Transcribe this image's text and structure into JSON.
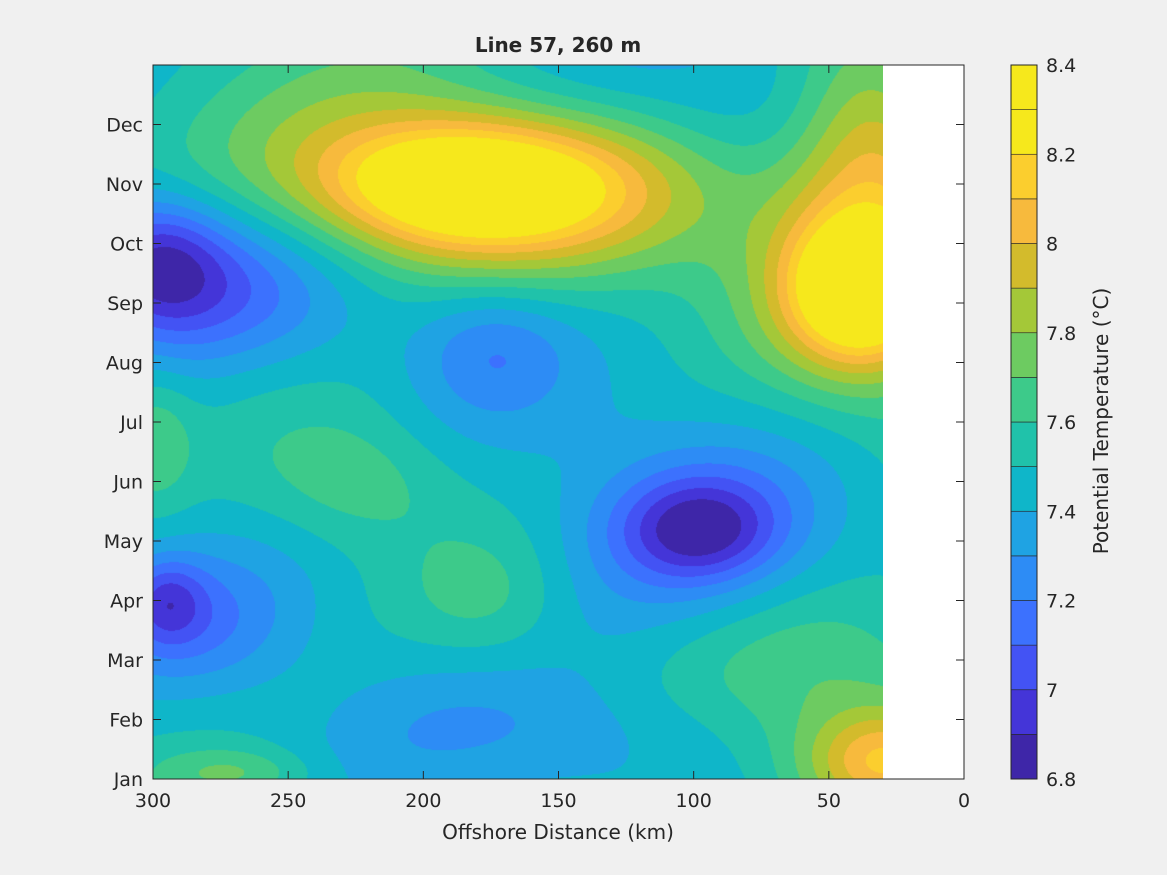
{
  "chart_data": {
    "type": "heatmap",
    "subtype": "filled-contour",
    "title": "Line 57, 260 m",
    "xlabel": "Offshore Distance (km)",
    "ylabel": "",
    "colorbar_label": "Potential Temperature (°C)",
    "xlim": [
      300,
      0
    ],
    "x_reversed": true,
    "x_ticks": [
      300,
      250,
      200,
      150,
      100,
      50,
      0
    ],
    "y_tick_labels": [
      "Jan",
      "Feb",
      "Mar",
      "Apr",
      "May",
      "Jun",
      "Jul",
      "Aug",
      "Sep",
      "Oct",
      "Nov",
      "Dec"
    ],
    "y_months": [
      1,
      2,
      3,
      4,
      5,
      6,
      7,
      8,
      9,
      10,
      11,
      12
    ],
    "ylim": [
      1,
      13
    ],
    "data_xmin": 30,
    "colorbar_ticks": [
      6.8,
      7,
      7.2,
      7.4,
      7.6,
      7.8,
      8,
      8.2,
      8.4
    ],
    "clim": [
      6.8,
      8.4
    ],
    "contour_levels": [
      6.8,
      6.9,
      7.0,
      7.1,
      7.2,
      7.3,
      7.4,
      7.5,
      7.6,
      7.7,
      7.8,
      7.9,
      8.0,
      8.1,
      8.2,
      8.3,
      8.4
    ],
    "level_colors": [
      "#3e26a8",
      "#4435d8",
      "#4353f4",
      "#3c71fe",
      "#2d8cf5",
      "#1fa3e3",
      "#0fb6c9",
      "#20c2aa",
      "#3dca8a",
      "#6dcb61",
      "#a4c838",
      "#d3bb2c",
      "#f7ba3d",
      "#fbce2e",
      "#f6e81c"
    ],
    "features": [
      {
        "x": 300,
        "y": 9.7,
        "value": 6.9,
        "sx": 18,
        "sy": 0.8
      },
      {
        "x": 280,
        "y": 9.5,
        "value": 7.1,
        "sx": 30,
        "sy": 1.0
      },
      {
        "x": 295,
        "y": 4.0,
        "value": 7.1,
        "sx": 10,
        "sy": 0.5
      },
      {
        "x": 285,
        "y": 3.6,
        "value": 7.2,
        "sx": 25,
        "sy": 0.8
      },
      {
        "x": 300,
        "y": 6.7,
        "value": 7.7,
        "sx": 10,
        "sy": 0.8
      },
      {
        "x": 270,
        "y": 1.1,
        "value": 7.7,
        "sx": 20,
        "sy": 0.3
      },
      {
        "x": 250,
        "y": 9.0,
        "value": 7.3,
        "sx": 45,
        "sy": 0.9
      },
      {
        "x": 225,
        "y": 6.0,
        "value": 7.7,
        "sx": 25,
        "sy": 0.8
      },
      {
        "x": 175,
        "y": 4.0,
        "value": 7.65,
        "sx": 22,
        "sy": 0.8
      },
      {
        "x": 175,
        "y": 8.3,
        "value": 7.2,
        "sx": 20,
        "sy": 0.8
      },
      {
        "x": 135,
        "y": 1.8,
        "value": 7.3,
        "sx": 60,
        "sy": 0.7
      },
      {
        "x": 98,
        "y": 5.2,
        "value": 6.95,
        "sx": 20,
        "sy": 0.6
      },
      {
        "x": 100,
        "y": 5.0,
        "value": 7.2,
        "sx": 45,
        "sy": 1.4
      },
      {
        "x": 190,
        "y": 11.0,
        "value": 8.1,
        "sx": 35,
        "sy": 0.7
      },
      {
        "x": 160,
        "y": 10.9,
        "value": 7.95,
        "sx": 55,
        "sy": 1.0
      },
      {
        "x": 200,
        "y": 11.2,
        "value": 7.8,
        "sx": 90,
        "sy": 1.6
      },
      {
        "x": 110,
        "y": 12.3,
        "value": 7.2,
        "sx": 50,
        "sy": 1.0
      },
      {
        "x": 38,
        "y": 9.2,
        "value": 8.3,
        "sx": 18,
        "sy": 0.8
      },
      {
        "x": 35,
        "y": 9.5,
        "value": 8.0,
        "sx": 30,
        "sy": 1.7
      },
      {
        "x": 35,
        "y": 12.0,
        "value": 7.9,
        "sx": 20,
        "sy": 1.2
      },
      {
        "x": 30,
        "y": 1.3,
        "value": 8.0,
        "sx": 20,
        "sy": 0.6
      },
      {
        "x": 45,
        "y": 2.5,
        "value": 7.8,
        "sx": 40,
        "sy": 1.4
      }
    ],
    "background_value": 7.45,
    "grid": false,
    "colorbar_position": "right"
  }
}
